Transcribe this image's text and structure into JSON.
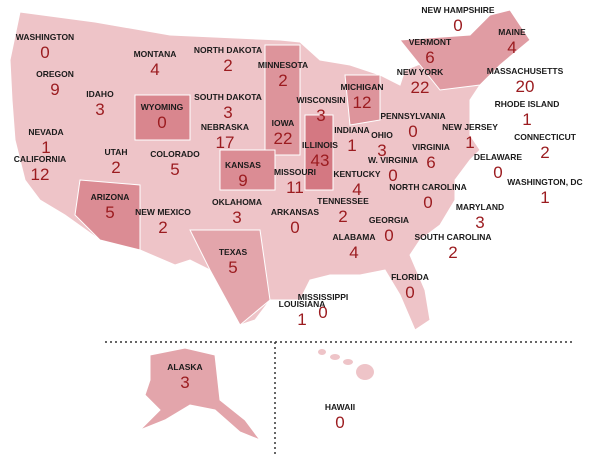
{
  "states": [
    {
      "name": "WASHINGTON",
      "value": 0
    },
    {
      "name": "OREGON",
      "value": 9
    },
    {
      "name": "IDAHO",
      "value": 3
    },
    {
      "name": "MONTANA",
      "value": 4
    },
    {
      "name": "WYOMING",
      "value": 0
    },
    {
      "name": "NORTH DAKOTA",
      "value": 2
    },
    {
      "name": "SOUTH DAKOTA",
      "value": 3
    },
    {
      "name": "MINNESOTA",
      "value": 2
    },
    {
      "name": "WISCONSIN",
      "value": 3
    },
    {
      "name": "MICHIGAN",
      "value": 12
    },
    {
      "name": "NEVADA",
      "value": 1
    },
    {
      "name": "UTAH",
      "value": 2
    },
    {
      "name": "COLORADO",
      "value": 5
    },
    {
      "name": "NEBRASKA",
      "value": 17
    },
    {
      "name": "IOWA",
      "value": 22
    },
    {
      "name": "ILLINOIS",
      "value": 43
    },
    {
      "name": "INDIANA",
      "value": 1
    },
    {
      "name": "OHIO",
      "value": 3
    },
    {
      "name": "PENNSYLVANIA",
      "value": 0
    },
    {
      "name": "NEW YORK",
      "value": 22
    },
    {
      "name": "VERMONT",
      "value": 6
    },
    {
      "name": "NEW HAMPSHIRE",
      "value": 0
    },
    {
      "name": "MAINE",
      "value": 4
    },
    {
      "name": "MASSACHUSETTS",
      "value": 20
    },
    {
      "name": "RHODE ISLAND",
      "value": 1
    },
    {
      "name": "CONNECTICUT",
      "value": 2
    },
    {
      "name": "NEW JERSEY",
      "value": 1
    },
    {
      "name": "DELAWARE",
      "value": 0
    },
    {
      "name": "WASHINGTON, DC",
      "value": 1
    },
    {
      "name": "MARYLAND",
      "value": 3
    },
    {
      "name": "VIRGINIA",
      "value": 6
    },
    {
      "name": "W. VIRGINIA",
      "value": 0
    },
    {
      "name": "KENTUCKY",
      "value": 4
    },
    {
      "name": "NORTH CAROLINA",
      "value": 0
    },
    {
      "name": "TENNESSEE",
      "value": 2
    },
    {
      "name": "CALIFORNIA",
      "value": 12
    },
    {
      "name": "KANSAS",
      "value": 9
    },
    {
      "name": "MISSOURI",
      "value": 11
    },
    {
      "name": "ARIZONA",
      "value": 5
    },
    {
      "name": "NEW MEXICO",
      "value": 2
    },
    {
      "name": "OKLAHOMA",
      "value": 3
    },
    {
      "name": "ARKANSAS",
      "value": 0
    },
    {
      "name": "GEORGIA",
      "value": 0
    },
    {
      "name": "SOUTH CAROLINA",
      "value": 2
    },
    {
      "name": "ALABAMA",
      "value": 4
    },
    {
      "name": "TEXAS",
      "value": 5
    },
    {
      "name": "MISSISSIPPI",
      "value": 0
    },
    {
      "name": "LOUISIANA",
      "value": 1
    },
    {
      "name": "FLORIDA",
      "value": 0
    },
    {
      "name": "ALASKA",
      "value": 3
    },
    {
      "name": "HAWAII",
      "value": 0
    }
  ]
}
